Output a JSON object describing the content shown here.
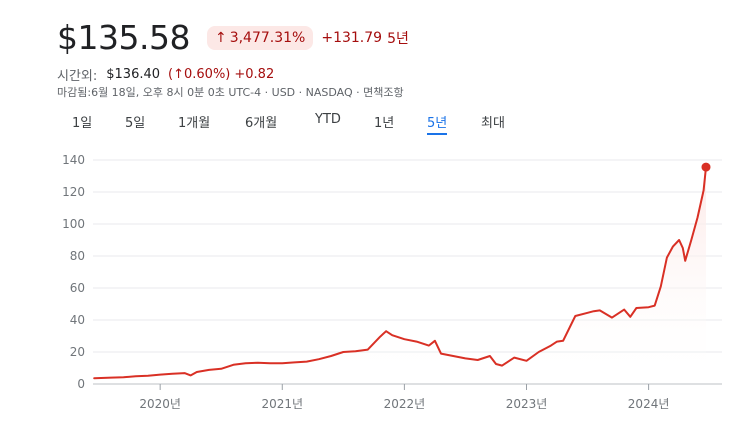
{
  "header": {
    "price": "$135.58",
    "percent_change": "3,477.31%",
    "percent_arrow_icon": "arrow-up-icon",
    "absolute_change": "+131.79",
    "period_label": "5년"
  },
  "after_hours": {
    "label": "시간외:",
    "price": "$136.40",
    "percent": "(↑0.60%)",
    "change": "+0.82"
  },
  "meta": {
    "text": "마감됨:6월 18일, 오후 8시 0분 0초 UTC-4 · USD · NASDAQ · 면책조항"
  },
  "tabs": [
    "1일",
    "5일",
    "1개월",
    "6개월",
    "YTD",
    "1년",
    "5년",
    "최대"
  ],
  "active_tab": "5년",
  "colors": {
    "line": "#d93025",
    "fill_top": "#fce8e6",
    "negative_text": "#a50e0e",
    "accent": "#1a73e8"
  },
  "chart_data": {
    "type": "area",
    "ylim": [
      0,
      140
    ],
    "yticks": [
      0,
      20,
      40,
      60,
      80,
      100,
      120,
      140
    ],
    "xlim": [
      2019.45,
      2024.47
    ],
    "xticks": [
      {
        "value": 2020.0,
        "label": "2020년"
      },
      {
        "value": 2021.0,
        "label": "2021년"
      },
      {
        "value": 2022.0,
        "label": "2022년"
      },
      {
        "value": 2023.0,
        "label": "2023년"
      },
      {
        "value": 2024.0,
        "label": "2024년"
      }
    ],
    "grid": true,
    "series": [
      {
        "x": [
          2019.46,
          2019.6,
          2019.7,
          2019.8,
          2019.9,
          2020.0,
          2020.1,
          2020.2,
          2020.25,
          2020.3,
          2020.4,
          2020.5,
          2020.6,
          2020.7,
          2020.8,
          2020.9,
          2021.0,
          2021.1,
          2021.2,
          2021.3,
          2021.4,
          2021.5,
          2021.6,
          2021.7,
          2021.8,
          2021.85,
          2021.9,
          2022.0,
          2022.1,
          2022.2,
          2022.25,
          2022.3,
          2022.4,
          2022.5,
          2022.6,
          2022.7,
          2022.75,
          2022.8,
          2022.9,
          2023.0,
          2023.1,
          2023.2,
          2023.25,
          2023.3,
          2023.4,
          2023.5,
          2023.55,
          2023.6,
          2023.7,
          2023.8,
          2023.85,
          2023.9,
          2024.0,
          2024.05,
          2024.1,
          2024.15,
          2024.2,
          2024.25,
          2024.28,
          2024.3,
          2024.35,
          2024.4,
          2024.45,
          2024.47
        ],
        "y": [
          3.6,
          4.0,
          4.2,
          4.8,
          5.2,
          5.9,
          6.4,
          6.8,
          5.4,
          7.5,
          8.8,
          9.5,
          12.0,
          13.0,
          13.3,
          13.0,
          13.0,
          13.5,
          14.0,
          15.5,
          17.5,
          20.0,
          20.5,
          21.5,
          29.5,
          33.0,
          30.5,
          28.0,
          26.5,
          24.0,
          27.0,
          19.0,
          17.5,
          16.0,
          15.0,
          17.5,
          12.5,
          11.5,
          16.5,
          14.5,
          20.0,
          24.0,
          26.5,
          27.0,
          42.5,
          44.5,
          45.5,
          46.0,
          41.5,
          46.5,
          42.0,
          47.5,
          48.0,
          49.0,
          61.0,
          79.0,
          86.0,
          90.0,
          85.0,
          77.0,
          90.0,
          104.0,
          121.0,
          135.58
        ]
      }
    ]
  }
}
